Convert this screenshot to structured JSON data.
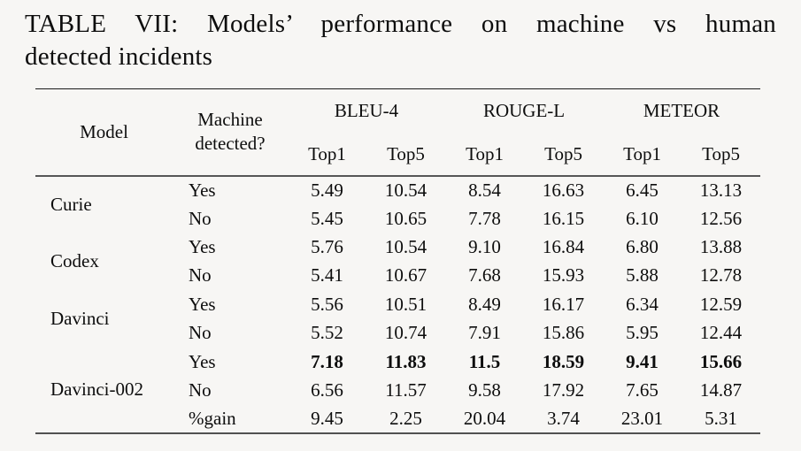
{
  "page": {
    "background": "#f7f6f4",
    "text_color": "#0d0d0d",
    "rule_color_thin": "#1b1b1b",
    "rule_color_thick": "#565656"
  },
  "caption": {
    "line1": "TABLE VII: Models’ performance on machine vs human",
    "line2": "detected incidents"
  },
  "table": {
    "header": {
      "model": "Model",
      "machine_line1": "Machine",
      "machine_line2": "detected?",
      "groups": [
        {
          "label": "BLEU-4"
        },
        {
          "label": "ROUGE-L"
        },
        {
          "label": "METEOR"
        }
      ],
      "subcols": [
        "Top1",
        "Top5",
        "Top1",
        "Top5",
        "Top1",
        "Top5"
      ]
    },
    "rows": [
      {
        "model": "Curie",
        "detected": "Yes",
        "bold": false,
        "values": [
          "5.49",
          "10.54",
          "8.54",
          "16.63",
          "6.45",
          "13.13"
        ]
      },
      {
        "model": "",
        "detected": "No",
        "bold": false,
        "values": [
          "5.45",
          "10.65",
          "7.78",
          "16.15",
          "6.10",
          "12.56"
        ]
      },
      {
        "model": "Codex",
        "detected": "Yes",
        "bold": false,
        "values": [
          "5.76",
          "10.54",
          "9.10",
          "16.84",
          "6.80",
          "13.88"
        ]
      },
      {
        "model": "",
        "detected": "No",
        "bold": false,
        "values": [
          "5.41",
          "10.67",
          "7.68",
          "15.93",
          "5.88",
          "12.78"
        ]
      },
      {
        "model": "Davinci",
        "detected": "Yes",
        "bold": false,
        "values": [
          "5.56",
          "10.51",
          "8.49",
          "16.17",
          "6.34",
          "12.59"
        ]
      },
      {
        "model": "",
        "detected": "No",
        "bold": false,
        "values": [
          "5.52",
          "10.74",
          "7.91",
          "15.86",
          "5.95",
          "12.44"
        ]
      },
      {
        "model": "Davinci-002",
        "detected": "Yes",
        "bold": true,
        "values": [
          "7.18",
          "11.83",
          "11.5",
          "18.59",
          "9.41",
          "15.66"
        ]
      },
      {
        "model": "",
        "detected": "No",
        "bold": false,
        "values": [
          "6.56",
          "11.57",
          "9.58",
          "17.92",
          "7.65",
          "14.87"
        ]
      },
      {
        "model": "",
        "detected": "%gain",
        "bold": false,
        "values": [
          "9.45",
          "2.25",
          "20.04",
          "3.74",
          "23.01",
          "5.31"
        ]
      }
    ]
  }
}
